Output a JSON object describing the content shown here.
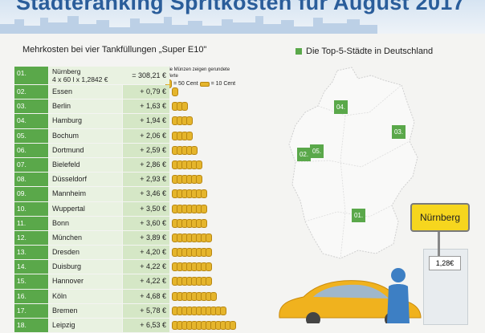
{
  "header": {
    "title": "Städteranking Spritkosten für August 2017"
  },
  "table": {
    "subtitle": "Mehrkosten bei vier Tankfüllungen „Super E10\"",
    "first": {
      "rank": "01.",
      "city": "Nürnberg",
      "formula": "4 x 60 l x 1,2842 €",
      "value": "= 308,21 €"
    },
    "rows": [
      {
        "rank": "02.",
        "city": "Essen",
        "value": "+ 0,79 €",
        "coins": 1
      },
      {
        "rank": "03.",
        "city": "Berlin",
        "value": "+ 1,63 €",
        "coins": 3
      },
      {
        "rank": "04.",
        "city": "Hamburg",
        "value": "+ 1,94 €",
        "coins": 4
      },
      {
        "rank": "05.",
        "city": "Bochum",
        "value": "+ 2,06 €",
        "coins": 4
      },
      {
        "rank": "06.",
        "city": "Dortmund",
        "value": "+ 2,59 €",
        "coins": 5
      },
      {
        "rank": "07.",
        "city": "Bielefeld",
        "value": "+ 2,86 €",
        "coins": 6
      },
      {
        "rank": "08.",
        "city": "Düsseldorf",
        "value": "+ 2,93 €",
        "coins": 6
      },
      {
        "rank": "09.",
        "city": "Mannheim",
        "value": "+ 3,46 €",
        "coins": 7
      },
      {
        "rank": "10.",
        "city": "Wuppertal",
        "value": "+ 3,50 €",
        "coins": 7
      },
      {
        "rank": "11.",
        "city": "Bonn",
        "value": "+ 3,60 €",
        "coins": 7
      },
      {
        "rank": "12.",
        "city": "München",
        "value": "+ 3,89 €",
        "coins": 8
      },
      {
        "rank": "13.",
        "city": "Dresden",
        "value": "+ 4,20 €",
        "coins": 8
      },
      {
        "rank": "14.",
        "city": "Duisburg",
        "value": "+ 4,22 €",
        "coins": 8
      },
      {
        "rank": "15.",
        "city": "Hannover",
        "value": "+ 4,22 €",
        "coins": 8
      },
      {
        "rank": "16.",
        "city": "Köln",
        "value": "+ 4,68 €",
        "coins": 9
      },
      {
        "rank": "17.",
        "city": "Bremen",
        "value": "+ 5,78 €",
        "coins": 11
      },
      {
        "rank": "18.",
        "city": "Leipzig",
        "value": "+ 6,53 €",
        "coins": 13
      }
    ]
  },
  "coin_legend": {
    "note": "Die Münzen zeigen gerundete Werte",
    "big": "= 50 Cent",
    "small": "= 10 Cent"
  },
  "map": {
    "legend": "Die Top-5-Städte in Deutschland",
    "badges": [
      {
        "label": "04."
      },
      {
        "label": "03."
      },
      {
        "label": "02."
      },
      {
        "label": "05."
      },
      {
        "label": "01."
      }
    ]
  },
  "station": {
    "sign": "Nürnberg",
    "price": "1,28€"
  },
  "colors": {
    "accent": "#5aa84a",
    "title": "#2a5d9a",
    "coin": "#e5b52c"
  }
}
